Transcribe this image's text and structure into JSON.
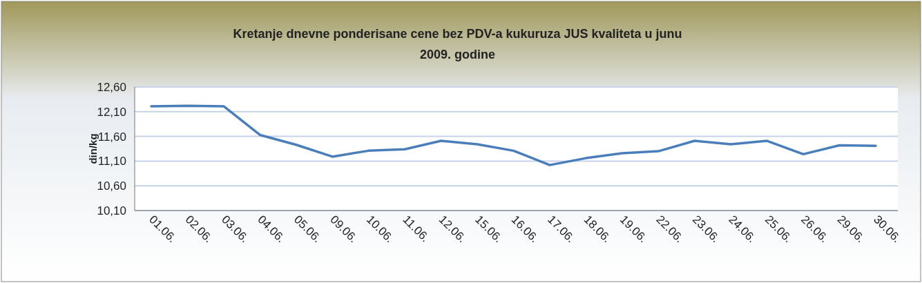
{
  "chart_data": {
    "type": "line",
    "title": "Kretanje dnevne ponderisane cene bez PDV-a  kukuruza JUS kvaliteta  u junu 2009. godine",
    "ylabel": "din/kg",
    "categories": [
      "01.06.",
      "02.06.",
      "03.06.",
      "04.06.",
      "05.06.",
      "09.06.",
      "10.06.",
      "11.06.",
      "12.06.",
      "15.06.",
      "16.06.",
      "17.06.",
      "18.06.",
      "19.06.",
      "22.06.",
      "23.06.",
      "24.06.",
      "25.06.",
      "26.06.",
      "29.06.",
      "30.06."
    ],
    "series": [
      {
        "color": "#4a7ebb",
        "values": [
          12.21,
          12.22,
          12.21,
          11.63,
          11.43,
          11.19,
          11.31,
          11.34,
          11.51,
          11.44,
          11.31,
          11.02,
          11.16,
          11.26,
          11.3,
          11.51,
          11.44,
          11.51,
          11.24,
          11.42,
          11.41
        ]
      }
    ],
    "ylim": [
      10.1,
      12.6
    ],
    "yticks": [
      {
        "value": 10.1,
        "label": "10,10"
      },
      {
        "value": 10.6,
        "label": "10,60"
      },
      {
        "value": 11.1,
        "label": "11,10"
      },
      {
        "value": 11.6,
        "label": "11,60"
      },
      {
        "value": 12.1,
        "label": "12,10"
      },
      {
        "value": 12.6,
        "label": "12,60"
      }
    ],
    "grid": "y",
    "marker": "none",
    "line_style": "solid"
  }
}
